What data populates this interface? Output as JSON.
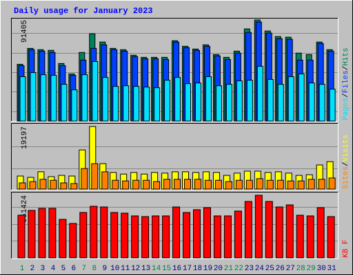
{
  "chart_data": {
    "type": "bar",
    "title": "Daily usage for January 2023",
    "categories": [
      "1",
      "2",
      "3",
      "4",
      "5",
      "6",
      "7",
      "8",
      "9",
      "10",
      "11",
      "12",
      "13",
      "14",
      "15",
      "16",
      "17",
      "18",
      "19",
      "20",
      "21",
      "22",
      "23",
      "24",
      "25",
      "26",
      "27",
      "28",
      "29",
      "30",
      "31"
    ],
    "category_colors": [
      "#008040",
      "#000080",
      "#000080",
      "#000080",
      "#000080",
      "#000080",
      "#008040",
      "#008040",
      "#000080",
      "#000080",
      "#000080",
      "#000080",
      "#000080",
      "#008040",
      "#008040",
      "#000080",
      "#000080",
      "#000080",
      "#000080",
      "#000080",
      "#008040",
      "#008040",
      "#000080",
      "#000080",
      "#000080",
      "#000080",
      "#000080",
      "#008040",
      "#008040",
      "#000080",
      "#000080"
    ],
    "separator": "/",
    "panels": [
      {
        "ylim": [
          0,
          91405
        ],
        "yticks": [
          91405
        ],
        "gridlines": [
          8700,
          26700,
          44200,
          61600,
          79600
        ],
        "series": [
          {
            "name": "Hits",
            "color": "#00805c",
            "values": [
              51300,
              65700,
              64500,
              63900,
              52000,
              42600,
              62000,
              78900,
              71400,
              65700,
              64500,
              59500,
              57600,
              57600,
              57600,
              72600,
              67600,
              65100,
              68900,
              60100,
              57600,
              63200,
              83300,
              91405,
              81400,
              76400,
              75800,
              61400,
              60100,
              71400,
              64500
            ]
          },
          {
            "name": "Files",
            "color": "#0040ff",
            "values": [
              50100,
              64500,
              63200,
              62000,
              50100,
              41300,
              55100,
              65700,
              68900,
              64500,
              63200,
              58200,
              56300,
              56300,
              55700,
              71400,
              66400,
              63900,
              67600,
              58900,
              55700,
              61400,
              80100,
              89500,
              79500,
              74500,
              73900,
              55100,
              55100,
              70100,
              63200
            ]
          },
          {
            "name": "Pages",
            "color": "#00e0ff",
            "values": [
              40100,
              43800,
              41900,
              41300,
              33200,
              28200,
              41900,
              53800,
              39400,
              31300,
              31900,
              31300,
              30700,
              30100,
              36900,
              39400,
              33800,
              34400,
              40100,
              31900,
              33200,
              36300,
              36900,
              49500,
              37600,
              33200,
              40100,
              42600,
              34400,
              33200,
              28800
            ]
          }
        ]
      },
      {
        "ylim": [
          0,
          19197
        ],
        "yticks": [
          19197
        ],
        "gridlines": [
          6300,
          13100
        ],
        "series": [
          {
            "name": "Visits",
            "color": "#ffff00",
            "values": [
              4000,
              3600,
              5300,
              3800,
              4200,
              4000,
              12000,
              19197,
              7800,
              5100,
              4600,
              5100,
              4600,
              5100,
              4900,
              5300,
              5300,
              5100,
              5300,
              5100,
              4200,
              4900,
              5500,
              5500,
              5100,
              5300,
              4900,
              4200,
              4400,
              7400,
              8400
            ]
          },
          {
            "name": "Sites",
            "color": "#ff8000",
            "values": [
              1900,
              2300,
              3000,
              2700,
              1900,
              1700,
              6300,
              7800,
              5300,
              2700,
              2500,
              2700,
              2700,
              2300,
              3000,
              3000,
              3000,
              3000,
              2700,
              2700,
              2300,
              2700,
              2700,
              3200,
              2700,
              2700,
              2500,
              2500,
              3000,
              3000,
              3400
            ]
          }
        ]
      },
      {
        "ylim": [
          0,
          951424
        ],
        "yticks": [
          951424
        ],
        "gridlines": [
          261400,
          512300,
          773700
        ],
        "series": [
          {
            "name": "KB F",
            "color": "#ff0000",
            "values": [
              648200,
              721400,
              752800,
              752800,
              585500,
              522800,
              690000,
              784100,
              773700,
              690000,
              679600,
              637800,
              627300,
              637800,
              637800,
              773700,
              690000,
              731900,
              763200,
              637800,
              637800,
              710900,
              857300,
              951424,
              857300,
              773700,
              805000,
              648200,
              637800,
              763200,
              627300
            ]
          }
        ]
      }
    ]
  }
}
